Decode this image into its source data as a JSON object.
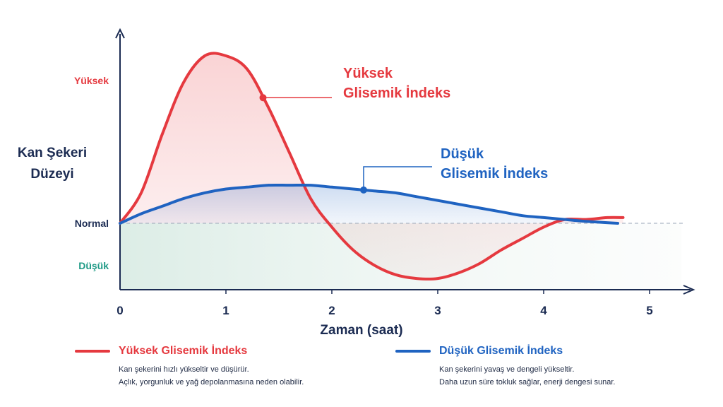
{
  "chart_data": {
    "type": "line",
    "xlabel": "Zaman (saat)",
    "ylabel": [
      "Kan Şekeri",
      "Düzeyi"
    ],
    "x_ticks": [
      "0",
      "1",
      "2",
      "3",
      "4",
      "5"
    ],
    "xlim": [
      0,
      5.5
    ],
    "y_levels": [
      {
        "label": "Yüksek",
        "value": 0.75,
        "color": "#e5393f"
      },
      {
        "label": "Normal",
        "value": 0.0,
        "color": "#1b2b52"
      },
      {
        "label": "Düşük",
        "value": -0.3,
        "color": "#1f9a86"
      }
    ],
    "ylim": [
      -0.33,
      0.95
    ],
    "normal_level": 0.0,
    "grid": false,
    "series": [
      {
        "name": "Yüksek Glisemik İndeks",
        "color": "#e5393f",
        "x": [
          0,
          0.2,
          0.4,
          0.6,
          0.8,
          1.0,
          1.2,
          1.4,
          1.6,
          1.8,
          2.0,
          2.2,
          2.4,
          2.6,
          2.8,
          3.0,
          3.2,
          3.4,
          3.6,
          3.8,
          4.0,
          4.2,
          4.4,
          4.6,
          4.75
        ],
        "y": [
          0,
          0.16,
          0.47,
          0.74,
          0.88,
          0.88,
          0.81,
          0.61,
          0.37,
          0.13,
          -0.02,
          -0.14,
          -0.22,
          -0.27,
          -0.29,
          -0.29,
          -0.26,
          -0.21,
          -0.14,
          -0.08,
          -0.02,
          0.02,
          0.02,
          0.03,
          0.03
        ],
        "label": [
          "Yüksek",
          "Glisemik İndeks"
        ],
        "marker_x": 1.35
      },
      {
        "name": "Düşük Glisemik İndeks",
        "color": "#1f63c1",
        "x": [
          0,
          0.2,
          0.4,
          0.6,
          0.8,
          1.0,
          1.2,
          1.4,
          1.6,
          1.8,
          2.0,
          2.2,
          2.4,
          2.6,
          2.8,
          3.0,
          3.2,
          3.4,
          3.6,
          3.8,
          4.0,
          4.2,
          4.4,
          4.7
        ],
        "y": [
          0,
          0.05,
          0.09,
          0.13,
          0.16,
          0.18,
          0.19,
          0.2,
          0.2,
          0.2,
          0.19,
          0.18,
          0.17,
          0.16,
          0.14,
          0.12,
          0.1,
          0.08,
          0.06,
          0.04,
          0.03,
          0.02,
          0.01,
          0.0
        ],
        "label": [
          "Düşük",
          "Glisemik İndeks"
        ],
        "marker_x": 2.3
      }
    ]
  },
  "legend": [
    {
      "title": "Yüksek Glisemik İndeks",
      "color": "#e5393f",
      "lines": [
        "Kan şekerini hızlı yükseltir ve düşürür.",
        "Açlık, yorgunluk ve yağ depolanmasına neden olabilir."
      ]
    },
    {
      "title": "Düşük Glisemik İndeks",
      "color": "#1f63c1",
      "lines": [
        "Kan şekerini yavaş ve dengeli yükseltir.",
        "Daha uzun süre tokluk sağlar, enerji dengesi sunar."
      ]
    }
  ],
  "colors": {
    "axis": "#1b2b52",
    "normal_line": "#9aa6b8",
    "low_zone": "#e6f1ed"
  }
}
